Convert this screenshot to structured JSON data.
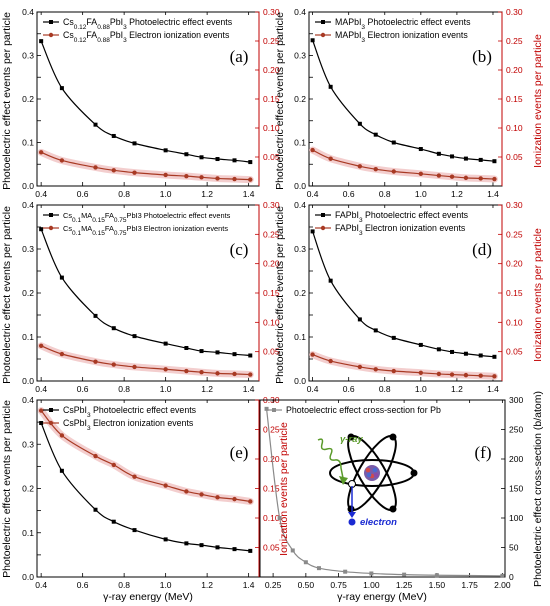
{
  "colors": {
    "black_series": "#000000",
    "red_series": "#a83a24",
    "red_axis": "#c00000",
    "grey_series": "#8a8a8a",
    "band": "#f2c9c9"
  },
  "labels": {
    "ylabel_left": "Photoelectric effect events per particle",
    "ylabel_right": "Ionization events per particle",
    "xlabel": "γ-ray energy (MeV)",
    "ylabel_right_f": "Photoelectric effect cross-section (b/atom)"
  },
  "inset": {
    "gamma": "γ-ray",
    "electron": "electron",
    "icons": [
      "atom-icon",
      "nucleus-icon",
      "photon-arrow-icon"
    ]
  },
  "chart_data": [
    {
      "id": "a",
      "type": "line",
      "panel_label": "(a)",
      "x": [
        0.4,
        0.5,
        0.662,
        0.75,
        0.85,
        1.0,
        1.1,
        1.173,
        1.25,
        1.332,
        1.408
      ],
      "xlim": [
        0.38,
        1.45
      ],
      "xticks": [
        0.4,
        0.6,
        0.8,
        1.0,
        1.2,
        1.4
      ],
      "ylim_left": [
        0,
        0.4
      ],
      "yticks_left": [
        0,
        0.05,
        0.1,
        0.15,
        0.2,
        0.25,
        0.3,
        0.35,
        0.4
      ],
      "ylim_right": [
        0,
        0.3
      ],
      "yticks_right": [
        0.05,
        0.1,
        0.15,
        0.2,
        0.25,
        0.3
      ],
      "series": [
        {
          "name": "Cs0.12FA0.88PbI3 Photoelectric effect events",
          "axis": "left",
          "color": "#000000",
          "values": [
            0.333,
            0.225,
            0.141,
            0.115,
            0.098,
            0.082,
            0.073,
            0.066,
            0.062,
            0.059,
            0.055
          ]
        },
        {
          "name": "Cs0.12FA0.88PbI3 Electron ionization events",
          "axis": "right",
          "color": "#a83a24",
          "values": [
            0.058,
            0.044,
            0.032,
            0.027,
            0.023,
            0.019,
            0.017,
            0.015,
            0.013,
            0.012,
            0.011
          ]
        }
      ],
      "legend": [
        {
          "pre": "Cs",
          "s1": "0.12",
          "mid": "FA",
          "s2": "0.88",
          "post": "PbI",
          "s3": "3",
          "tail": " Photoelectric effect events"
        },
        {
          "pre": "Cs",
          "s1": "0.12",
          "mid": "FA",
          "s2": "0.88",
          "post": "PbI",
          "s3": "3",
          "tail": " Electron ionization events"
        }
      ]
    },
    {
      "id": "b",
      "type": "line",
      "panel_label": "(b)",
      "x": [
        0.4,
        0.5,
        0.662,
        0.75,
        0.85,
        1.0,
        1.1,
        1.173,
        1.25,
        1.332,
        1.408
      ],
      "xlim": [
        0.38,
        1.45
      ],
      "xticks": [
        0.4,
        0.6,
        0.8,
        1.0,
        1.2,
        1.4
      ],
      "ylim_left": [
        0,
        0.4
      ],
      "yticks_left": [
        0,
        0.05,
        0.1,
        0.15,
        0.2,
        0.25,
        0.3,
        0.35,
        0.4
      ],
      "ylim_right": [
        0,
        0.3
      ],
      "yticks_right": [
        0.05,
        0.1,
        0.15,
        0.2,
        0.25,
        0.3
      ],
      "series": [
        {
          "name": "MAPbI3 Photoelectric effect events",
          "axis": "left",
          "color": "#000000",
          "values": [
            0.335,
            0.228,
            0.143,
            0.118,
            0.1,
            0.085,
            0.074,
            0.068,
            0.063,
            0.06,
            0.057
          ]
        },
        {
          "name": "MAPbI3 Electron ionization events",
          "axis": "right",
          "color": "#a83a24",
          "values": [
            0.062,
            0.047,
            0.034,
            0.029,
            0.025,
            0.021,
            0.018,
            0.016,
            0.014,
            0.013,
            0.012
          ]
        }
      ],
      "legend": [
        {
          "pre": "MAPbI",
          "s1": "3",
          "mid": "",
          "s2": "",
          "post": "",
          "s3": "",
          "tail": " Photoelectric effect events"
        },
        {
          "pre": "MAPbI",
          "s1": "3",
          "mid": "",
          "s2": "",
          "post": "",
          "s3": "",
          "tail": " Electron ionization events"
        }
      ]
    },
    {
      "id": "c",
      "type": "line",
      "panel_label": "(c)",
      "x": [
        0.4,
        0.5,
        0.662,
        0.75,
        0.85,
        1.0,
        1.1,
        1.173,
        1.25,
        1.332,
        1.408
      ],
      "xlim": [
        0.38,
        1.45
      ],
      "xticks": [
        0.4,
        0.6,
        0.8,
        1.0,
        1.2,
        1.4
      ],
      "ylim_left": [
        0,
        0.4
      ],
      "yticks_left": [
        0,
        0.05,
        0.1,
        0.15,
        0.2,
        0.25,
        0.3,
        0.35,
        0.4
      ],
      "ylim_right": [
        0,
        0.3
      ],
      "yticks_right": [
        0.05,
        0.1,
        0.15,
        0.2,
        0.25,
        0.3
      ],
      "series": [
        {
          "name": "Cs0.1MA0.15FA0.75PbI3 Photoelectric effect events",
          "axis": "left",
          "color": "#000000",
          "values": [
            0.345,
            0.235,
            0.148,
            0.12,
            0.102,
            0.085,
            0.075,
            0.068,
            0.065,
            0.061,
            0.058
          ]
        },
        {
          "name": "Cs0.1MA0.15FA0.75PbI3 Electron ionization events",
          "axis": "right",
          "color": "#a83a24",
          "values": [
            0.06,
            0.046,
            0.033,
            0.028,
            0.024,
            0.02,
            0.017,
            0.015,
            0.013,
            0.012,
            0.011
          ]
        }
      ],
      "legend": [
        {
          "pre": "Cs",
          "s1": "0.1",
          "mid": "MA",
          "s2": "0.15",
          "post": "FA",
          "s3": "0.75",
          "tail": "PbI3 Photoelectric effect events",
          "small": true
        },
        {
          "pre": "Cs",
          "s1": "0.1",
          "mid": "MA",
          "s2": "0.15",
          "post": "FA",
          "s3": "0.75",
          "tail": "PbI3 Electron ionization events",
          "small": true
        }
      ]
    },
    {
      "id": "d",
      "type": "line",
      "panel_label": "(d)",
      "x": [
        0.4,
        0.5,
        0.662,
        0.75,
        0.85,
        1.0,
        1.1,
        1.173,
        1.25,
        1.332,
        1.408
      ],
      "xlim": [
        0.38,
        1.45
      ],
      "xticks": [
        0.4,
        0.6,
        0.8,
        1.0,
        1.2,
        1.4
      ],
      "ylim_left": [
        0,
        0.4
      ],
      "yticks_left": [
        0,
        0.05,
        0.1,
        0.15,
        0.2,
        0.25,
        0.3,
        0.35,
        0.4
      ],
      "ylim_right": [
        0,
        0.3
      ],
      "yticks_right": [
        0.05,
        0.1,
        0.15,
        0.2,
        0.25,
        0.3
      ],
      "series": [
        {
          "name": "FAPbI3 Photoelectric effect events",
          "axis": "left",
          "color": "#000000",
          "values": [
            0.34,
            0.228,
            0.14,
            0.115,
            0.098,
            0.082,
            0.072,
            0.066,
            0.062,
            0.058,
            0.055
          ]
        },
        {
          "name": "FAPbI3 Electron ionization events",
          "axis": "right",
          "color": "#a83a24",
          "values": [
            0.045,
            0.034,
            0.024,
            0.02,
            0.017,
            0.014,
            0.012,
            0.011,
            0.01,
            0.009,
            0.008
          ]
        }
      ],
      "legend": [
        {
          "pre": "FAPbI",
          "s1": "3",
          "mid": "",
          "s2": "",
          "post": "",
          "s3": "",
          "tail": " Photoelectric effect events"
        },
        {
          "pre": "FAPbI",
          "s1": "3",
          "mid": "",
          "s2": "",
          "post": "",
          "s3": "",
          "tail": " Electron ionization events"
        }
      ]
    },
    {
      "id": "e",
      "type": "line",
      "panel_label": "(e)",
      "x": [
        0.4,
        0.5,
        0.662,
        0.75,
        0.85,
        1.0,
        1.1,
        1.173,
        1.25,
        1.332,
        1.408
      ],
      "xlim": [
        0.38,
        1.45
      ],
      "xticks": [
        0.4,
        0.6,
        0.8,
        1.0,
        1.2,
        1.4
      ],
      "ylim_left": [
        0,
        0.4
      ],
      "yticks_left": [
        0,
        0.05,
        0.1,
        0.15,
        0.2,
        0.25,
        0.3,
        0.35,
        0.4
      ],
      "ylim_right": [
        0,
        0.3
      ],
      "yticks_right": [
        0.05,
        0.1,
        0.15,
        0.2,
        0.25,
        0.3
      ],
      "series": [
        {
          "name": "CsPbI3 Photoelectric effect events",
          "axis": "left",
          "color": "#000000",
          "values": [
            0.348,
            0.24,
            0.152,
            0.125,
            0.106,
            0.085,
            0.076,
            0.072,
            0.067,
            0.063,
            0.059
          ]
        },
        {
          "name": "CsPbI3 Electron ionization events",
          "axis": "right",
          "color": "#a83a24",
          "values": [
            0.282,
            0.24,
            0.205,
            0.19,
            0.17,
            0.155,
            0.145,
            0.14,
            0.135,
            0.132,
            0.128
          ]
        }
      ],
      "legend": [
        {
          "pre": "CsPbI",
          "s1": "3",
          "mid": "",
          "s2": "",
          "post": "",
          "s3": "",
          "tail": " Photoelectric effect events"
        },
        {
          "pre": "CsPbI",
          "s1": "3",
          "mid": "",
          "s2": "",
          "post": "",
          "s3": "",
          "tail": " Electron ionization events"
        }
      ]
    },
    {
      "id": "f",
      "type": "line",
      "panel_label": "(f)",
      "x": [
        0.2,
        0.3,
        0.4,
        0.5,
        0.6,
        0.8,
        1.0,
        1.25,
        1.5,
        2.0
      ],
      "xlim": [
        0.15,
        2.02
      ],
      "xticks": [
        0.25,
        0.5,
        0.75,
        1.0,
        1.25,
        1.5,
        1.75,
        2.0
      ],
      "ylim_right": [
        0,
        300
      ],
      "yticks_right": [
        0,
        50,
        100,
        150,
        200,
        250,
        300
      ],
      "series": [
        {
          "name": "Photoelectric effect cross-section for Pb",
          "axis": "right",
          "color": "#8a8a8a",
          "values": [
            285,
            100,
            45,
            25,
            15,
            9,
            6,
            4,
            3,
            2
          ]
        }
      ],
      "legend": [
        {
          "pre": "Photoelectric effect cross-section for Pb",
          "s1": "",
          "mid": "",
          "s2": "",
          "post": "",
          "s3": "",
          "tail": ""
        }
      ]
    }
  ]
}
